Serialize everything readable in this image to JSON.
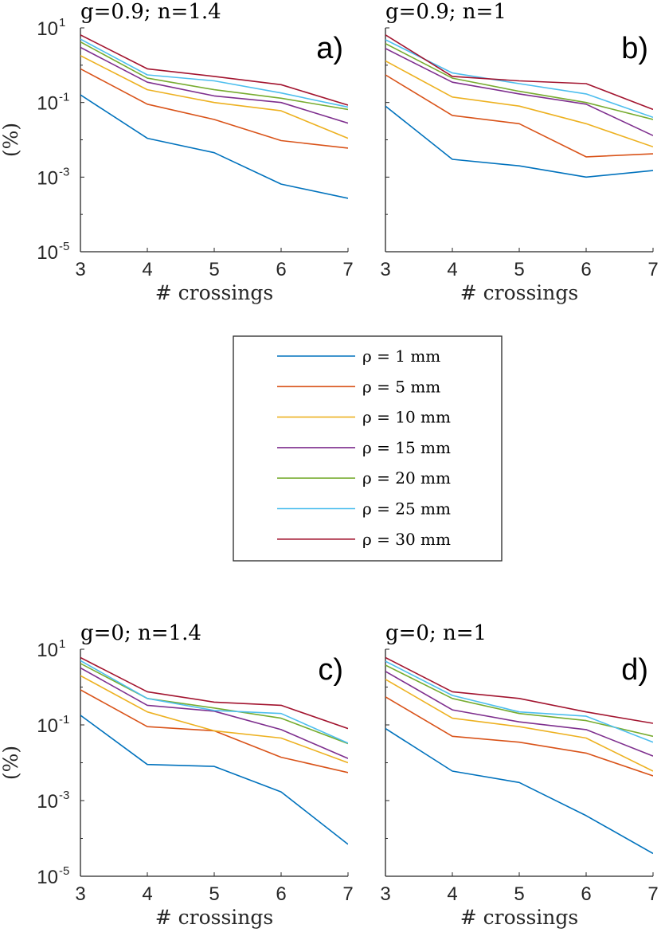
{
  "series_colors": [
    "#0072BD",
    "#D95319",
    "#EDB120",
    "#7E2F8E",
    "#77AC30",
    "#4DBEEE",
    "#A2142F"
  ],
  "legend": {
    "placement": "center",
    "entries": [
      "ρ = 1 mm",
      "ρ = 5 mm",
      "ρ = 10 mm",
      "ρ = 15 mm",
      "ρ = 20 mm",
      "ρ = 25 mm",
      "ρ = 30 mm"
    ]
  },
  "chart_data": [
    {
      "type": "line",
      "title": "g=0.9; n=1.4",
      "tag": "a)",
      "xlabel": "# crossings",
      "ylabel": "(%)",
      "x": [
        3,
        4,
        5,
        6,
        7
      ],
      "xlim": [
        3,
        7
      ],
      "ylim": [
        1e-05,
        10
      ],
      "yscale": "log",
      "xticks": [
        "3",
        "4",
        "5",
        "6",
        "7"
      ],
      "yticks": [
        {
          "base": "10",
          "exp": "1"
        },
        {
          "base": "10",
          "exp": "-1"
        },
        {
          "base": "10",
          "exp": "-3"
        },
        {
          "base": "10",
          "exp": "-5"
        }
      ],
      "series": [
        {
          "name": "ρ = 1 mm",
          "values": [
            0.16,
            0.011,
            0.0045,
            0.00065,
            0.00027
          ]
        },
        {
          "name": "ρ = 5 mm",
          "values": [
            0.8,
            0.09,
            0.035,
            0.0095,
            0.006
          ]
        },
        {
          "name": "ρ = 10 mm",
          "values": [
            1.8,
            0.22,
            0.1,
            0.06,
            0.011
          ]
        },
        {
          "name": "ρ = 15 mm",
          "values": [
            3.0,
            0.35,
            0.15,
            0.1,
            0.028
          ]
        },
        {
          "name": "ρ = 20 mm",
          "values": [
            4.2,
            0.45,
            0.22,
            0.13,
            0.065
          ]
        },
        {
          "name": "ρ = 25 mm",
          "values": [
            5.0,
            0.55,
            0.38,
            0.18,
            0.075
          ]
        },
        {
          "name": "ρ = 30 mm",
          "values": [
            6.5,
            0.8,
            0.5,
            0.3,
            0.085
          ]
        }
      ]
    },
    {
      "type": "line",
      "title": "g=0.9; n=1",
      "tag": "b)",
      "xlabel": "# crossings",
      "ylabel": "",
      "x": [
        3,
        4,
        5,
        6,
        7
      ],
      "xlim": [
        3,
        7
      ],
      "ylim": [
        1e-05,
        10
      ],
      "yscale": "log",
      "xticks": [
        "3",
        "4",
        "5",
        "6",
        "7"
      ],
      "yticks": [],
      "series": [
        {
          "name": "ρ = 1 mm",
          "values": [
            0.08,
            0.003,
            0.002,
            0.001,
            0.0015
          ]
        },
        {
          "name": "ρ = 5 mm",
          "values": [
            0.55,
            0.045,
            0.027,
            0.0035,
            0.0042
          ]
        },
        {
          "name": "ρ = 10 mm",
          "values": [
            1.3,
            0.14,
            0.08,
            0.027,
            0.0065
          ]
        },
        {
          "name": "ρ = 15 mm",
          "values": [
            2.8,
            0.35,
            0.17,
            0.09,
            0.013
          ]
        },
        {
          "name": "ρ = 20 mm",
          "values": [
            3.8,
            0.45,
            0.2,
            0.1,
            0.035
          ]
        },
        {
          "name": "ρ = 25 mm",
          "values": [
            4.8,
            0.62,
            0.32,
            0.17,
            0.04
          ]
        },
        {
          "name": "ρ = 30 mm",
          "values": [
            6.5,
            0.5,
            0.38,
            0.32,
            0.065
          ]
        }
      ]
    },
    {
      "type": "line",
      "title": "g=0; n=1.4",
      "tag": "c)",
      "xlabel": "# crossings",
      "ylabel": "(%)",
      "x": [
        3,
        4,
        5,
        6,
        7
      ],
      "xlim": [
        3,
        7
      ],
      "ylim": [
        1e-05,
        10
      ],
      "yscale": "log",
      "xticks": [
        "3",
        "4",
        "5",
        "6",
        "7"
      ],
      "yticks": [
        {
          "base": "10",
          "exp": "1"
        },
        {
          "base": "10",
          "exp": "-1"
        },
        {
          "base": "10",
          "exp": "-3"
        },
        {
          "base": "10",
          "exp": "-5"
        }
      ],
      "series": [
        {
          "name": "ρ = 1 mm",
          "values": [
            0.18,
            0.009,
            0.008,
            0.0017,
            7e-05
          ]
        },
        {
          "name": "ρ = 5 mm",
          "values": [
            0.85,
            0.09,
            0.07,
            0.014,
            0.0055
          ]
        },
        {
          "name": "ρ = 10 mm",
          "values": [
            2.0,
            0.22,
            0.07,
            0.045,
            0.01
          ]
        },
        {
          "name": "ρ = 15 mm",
          "values": [
            3.2,
            0.33,
            0.23,
            0.075,
            0.013
          ]
        },
        {
          "name": "ρ = 20 mm",
          "values": [
            4.2,
            0.5,
            0.28,
            0.15,
            0.032
          ]
        },
        {
          "name": "ρ = 25 mm",
          "values": [
            5.0,
            0.5,
            0.24,
            0.2,
            0.033
          ]
        },
        {
          "name": "ρ = 30 mm",
          "values": [
            6.0,
            0.75,
            0.4,
            0.33,
            0.08
          ]
        }
      ]
    },
    {
      "type": "line",
      "title": "g=0; n=1",
      "tag": "d)",
      "xlabel": "# crossings",
      "ylabel": "",
      "x": [
        3,
        4,
        5,
        6,
        7
      ],
      "xlim": [
        3,
        7
      ],
      "ylim": [
        1e-05,
        10
      ],
      "yscale": "log",
      "xticks": [
        "3",
        "4",
        "5",
        "6",
        "7"
      ],
      "yticks": [],
      "series": [
        {
          "name": "ρ = 1 mm",
          "values": [
            0.08,
            0.006,
            0.003,
            0.0004,
            4e-05
          ]
        },
        {
          "name": "ρ = 5 mm",
          "values": [
            0.55,
            0.05,
            0.035,
            0.018,
            0.0045
          ]
        },
        {
          "name": "ρ = 10 mm",
          "values": [
            1.6,
            0.15,
            0.09,
            0.045,
            0.006
          ]
        },
        {
          "name": "ρ = 15 mm",
          "values": [
            2.6,
            0.25,
            0.12,
            0.075,
            0.015
          ]
        },
        {
          "name": "ρ = 20 mm",
          "values": [
            3.8,
            0.5,
            0.2,
            0.13,
            0.05
          ]
        },
        {
          "name": "ρ = 25 mm",
          "values": [
            4.8,
            0.6,
            0.22,
            0.17,
            0.035
          ]
        },
        {
          "name": "ρ = 30 mm",
          "values": [
            6.0,
            0.75,
            0.5,
            0.22,
            0.11
          ]
        }
      ]
    }
  ]
}
